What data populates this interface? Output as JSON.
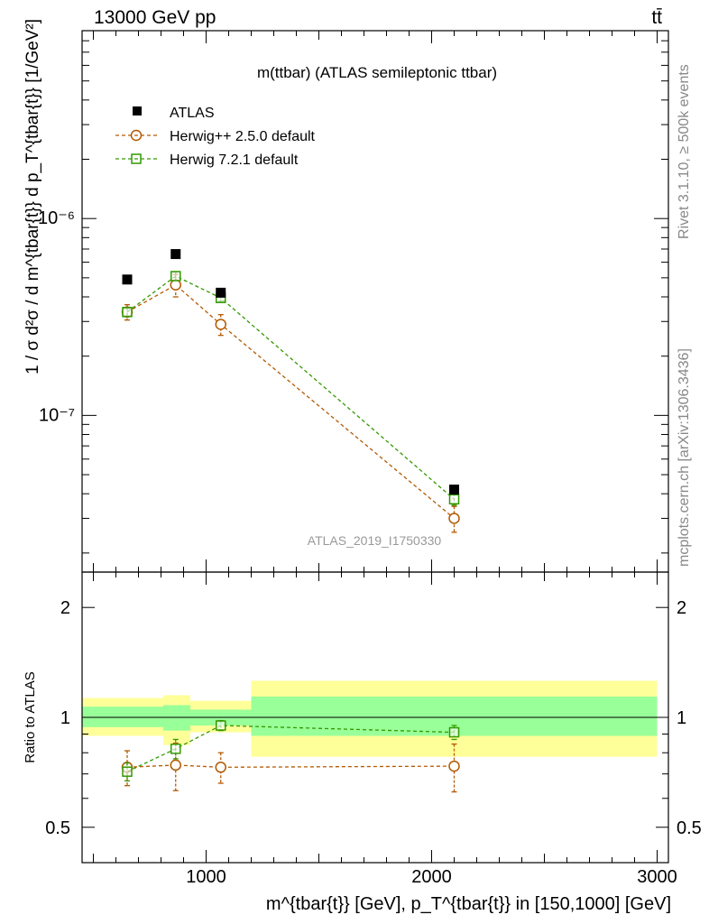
{
  "header": {
    "left": "13000 GeV pp",
    "right": "tt̄"
  },
  "side_labels": {
    "rivet": "Rivet 3.1.10, ≥ 500k events",
    "mcplots": "mcplots.cern.ch [arXiv:1306.3436]"
  },
  "colors": {
    "data": "#000000",
    "herwig_old": "#b35900",
    "herwig_new": "#339900",
    "band_inner": "#99ff99",
    "band_outer": "#ffff99",
    "watermark": "#999999"
  },
  "chart_data": [
    {
      "type": "scatter",
      "panel": "main",
      "title": "m(ttbar) (ATLAS semileptonic ttbar)",
      "ylabel": "1 / σ d²σ / d m^{tbar{t}} d p_T^{tbar{t}} [1/GeV²]",
      "yscale": "log",
      "ylim": [
        1.6e-08,
        9e-06
      ],
      "xlim": [
        450,
        3050
      ],
      "y_ticks": [
        {
          "label": "10⁻⁶",
          "value": 1e-06
        },
        {
          "label": "10⁻⁷",
          "value": 1e-07
        }
      ],
      "watermark": "ATLAS_2019_I1750330",
      "legend_position": "top-left",
      "x": [
        650,
        865,
        1065,
        2100
      ],
      "bins": [
        [
          450,
          810
        ],
        [
          810,
          930
        ],
        [
          930,
          1200
        ],
        [
          1200,
          3000
        ]
      ],
      "series": [
        {
          "name": "ATLAS",
          "style": "data",
          "values": [
            4.9e-07,
            6.6e-07,
            4.2e-07,
            4.2e-08
          ]
        },
        {
          "name": "Herwig++ 2.5.0 default",
          "style": "herwig_old",
          "values": [
            3.35e-07,
            4.6e-07,
            2.9e-07,
            3e-08
          ],
          "err": [
            3e-08,
            6e-08,
            3.5e-08,
            4.5e-09
          ]
        },
        {
          "name": "Herwig 7.2.1 default",
          "style": "herwig_new",
          "values": [
            3.35e-07,
            5.1e-07,
            3.95e-07,
            3.75e-08
          ],
          "err": [
            1.5e-08,
            2.5e-08,
            1.5e-08,
            2.5e-09
          ]
        }
      ]
    },
    {
      "type": "scatter",
      "panel": "ratio",
      "ylabel": "Ratio to ATLAS",
      "xlabel": "m^{tbar{t}} [GeV], p_T^{tbar{t}} in [150,1000] [GeV]",
      "xlim": [
        450,
        3050
      ],
      "ylim": [
        0.4,
        2.5
      ],
      "yscale": "log",
      "x_ticks": [
        {
          "label": "1000",
          "value": 1000
        },
        {
          "label": "2000",
          "value": 2000
        },
        {
          "label": "3000",
          "value": 3000
        }
      ],
      "y_ticks": [
        {
          "label": "2",
          "value": 2
        },
        {
          "label": "1",
          "value": 1
        },
        {
          "label": "0.5",
          "value": 0.5
        }
      ],
      "bands": [
        {
          "x0": 450,
          "x1": 810,
          "inner": [
            0.94,
            1.07
          ],
          "outer": [
            0.89,
            1.13
          ]
        },
        {
          "x0": 810,
          "x1": 930,
          "inner": [
            0.92,
            1.08
          ],
          "outer": [
            0.84,
            1.15
          ]
        },
        {
          "x0": 930,
          "x1": 1200,
          "inner": [
            0.95,
            1.05
          ],
          "outer": [
            0.91,
            1.11
          ]
        },
        {
          "x0": 1200,
          "x1": 3000,
          "inner": [
            0.89,
            1.14
          ],
          "outer": [
            0.78,
            1.26
          ]
        }
      ],
      "x": [
        650,
        865,
        1065,
        2100
      ],
      "series": [
        {
          "name": "Herwig++ 2.5.0 default",
          "style": "herwig_old",
          "values": [
            0.73,
            0.74,
            0.73,
            0.735
          ],
          "err": [
            0.08,
            0.11,
            0.07,
            0.11
          ]
        },
        {
          "name": "Herwig 7.2.1 default",
          "style": "herwig_new",
          "values": [
            0.71,
            0.82,
            0.95,
            0.91
          ],
          "err": [
            0.04,
            0.05,
            0.03,
            0.04
          ]
        }
      ]
    }
  ]
}
